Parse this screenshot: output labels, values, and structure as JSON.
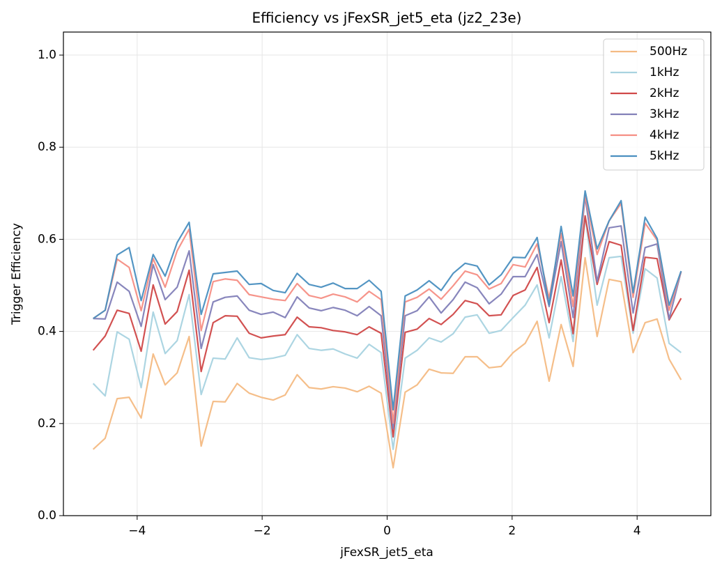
{
  "chart_data": {
    "type": "line",
    "title": "Efficiency vs jFexSR_jet5_eta (jz2_23e)",
    "xlabel": "jFexSR_jet5_eta",
    "ylabel": "Trigger Efficiency",
    "x": [
      -4.704,
      -4.512,
      -4.32,
      -4.128,
      -3.936,
      -3.744,
      -3.552,
      -3.36,
      -3.168,
      -2.976,
      -2.784,
      -2.592,
      -2.4,
      -2.208,
      -2.016,
      -1.824,
      -1.632,
      -1.44,
      -1.248,
      -1.056,
      -0.864,
      -0.672,
      -0.48,
      -0.288,
      -0.096,
      0.096,
      0.288,
      0.48,
      0.672,
      0.864,
      1.056,
      1.248,
      1.44,
      1.632,
      1.824,
      2.016,
      2.208,
      2.4,
      2.592,
      2.784,
      2.976,
      3.168,
      3.36,
      3.552,
      3.744,
      3.936,
      4.128,
      4.32,
      4.512,
      4.704
    ],
    "series": [
      {
        "name": "500Hz",
        "color": "#f4bb83",
        "values": [
          0.144,
          0.168,
          0.254,
          0.257,
          0.212,
          0.351,
          0.284,
          0.31,
          0.389,
          0.151,
          0.248,
          0.247,
          0.287,
          0.266,
          0.257,
          0.251,
          0.262,
          0.306,
          0.278,
          0.275,
          0.28,
          0.277,
          0.269,
          0.281,
          0.266,
          0.104,
          0.268,
          0.284,
          0.318,
          0.31,
          0.309,
          0.345,
          0.345,
          0.321,
          0.324,
          0.354,
          0.374,
          0.422,
          0.292,
          0.415,
          0.324,
          0.56,
          0.389,
          0.513,
          0.508,
          0.354,
          0.419,
          0.427,
          0.34,
          0.295
        ]
      },
      {
        "name": "1kHz",
        "color": "#a8d3e0",
        "values": [
          0.287,
          0.26,
          0.399,
          0.383,
          0.278,
          0.442,
          0.352,
          0.38,
          0.48,
          0.263,
          0.342,
          0.34,
          0.386,
          0.343,
          0.339,
          0.342,
          0.348,
          0.393,
          0.363,
          0.359,
          0.362,
          0.351,
          0.342,
          0.372,
          0.354,
          0.144,
          0.342,
          0.359,
          0.386,
          0.377,
          0.395,
          0.431,
          0.436,
          0.396,
          0.402,
          0.43,
          0.457,
          0.501,
          0.386,
          0.519,
          0.378,
          0.649,
          0.457,
          0.56,
          0.563,
          0.396,
          0.536,
          0.516,
          0.374,
          0.354
        ]
      },
      {
        "name": "2kHz",
        "color": "#d04848",
        "values": [
          0.359,
          0.39,
          0.446,
          0.439,
          0.357,
          0.501,
          0.416,
          0.443,
          0.533,
          0.313,
          0.419,
          0.434,
          0.433,
          0.396,
          0.386,
          0.39,
          0.393,
          0.431,
          0.41,
          0.408,
          0.402,
          0.399,
          0.393,
          0.41,
          0.396,
          0.171,
          0.398,
          0.405,
          0.428,
          0.415,
          0.437,
          0.467,
          0.46,
          0.434,
          0.436,
          0.478,
          0.49,
          0.539,
          0.419,
          0.555,
          0.395,
          0.651,
          0.502,
          0.595,
          0.587,
          0.402,
          0.561,
          0.558,
          0.425,
          0.472
        ]
      },
      {
        "name": "3kHz",
        "color": "#8280b8",
        "values": [
          0.428,
          0.427,
          0.507,
          0.487,
          0.411,
          0.545,
          0.469,
          0.496,
          0.575,
          0.363,
          0.464,
          0.474,
          0.477,
          0.446,
          0.437,
          0.442,
          0.43,
          0.475,
          0.451,
          0.445,
          0.452,
          0.446,
          0.434,
          0.454,
          0.434,
          0.189,
          0.434,
          0.445,
          0.475,
          0.44,
          0.469,
          0.507,
          0.495,
          0.46,
          0.481,
          0.519,
          0.519,
          0.567,
          0.454,
          0.595,
          0.43,
          0.693,
          0.508,
          0.625,
          0.629,
          0.44,
          0.582,
          0.59,
          0.427,
          0.53
        ]
      },
      {
        "name": "4kHz",
        "color": "#f58e84",
        "values": [
          0.428,
          0.446,
          0.557,
          0.539,
          0.445,
          0.558,
          0.496,
          0.575,
          0.622,
          0.402,
          0.508,
          0.514,
          0.511,
          0.48,
          0.475,
          0.47,
          0.467,
          0.504,
          0.478,
          0.472,
          0.481,
          0.475,
          0.464,
          0.487,
          0.469,
          0.201,
          0.464,
          0.474,
          0.492,
          0.47,
          0.499,
          0.531,
          0.523,
          0.492,
          0.504,
          0.545,
          0.54,
          0.59,
          0.472,
          0.613,
          0.454,
          0.696,
          0.567,
          0.64,
          0.678,
          0.474,
          0.635,
          0.598,
          0.446,
          0.53
        ]
      },
      {
        "name": "5kHz",
        "color": "#4a8fc0",
        "values": [
          0.428,
          0.446,
          0.566,
          0.582,
          0.467,
          0.567,
          0.52,
          0.593,
          0.637,
          0.437,
          0.525,
          0.528,
          0.531,
          0.502,
          0.504,
          0.489,
          0.484,
          0.526,
          0.502,
          0.496,
          0.505,
          0.493,
          0.493,
          0.511,
          0.487,
          0.23,
          0.477,
          0.49,
          0.51,
          0.489,
          0.526,
          0.548,
          0.542,
          0.501,
          0.523,
          0.561,
          0.56,
          0.604,
          0.458,
          0.628,
          0.477,
          0.705,
          0.579,
          0.64,
          0.684,
          0.484,
          0.648,
          0.602,
          0.457,
          0.531
        ]
      }
    ],
    "xlim": [
      -5.18,
      5.18
    ],
    "xticks": [
      {
        "value": -4,
        "label": "−4"
      },
      {
        "value": -2,
        "label": "−2"
      },
      0,
      2,
      4
    ],
    "ylim": [
      0,
      1.05
    ],
    "yticks": [
      {
        "value": 0,
        "label": "0.0"
      },
      0.2,
      0.4,
      0.6,
      0.8,
      {
        "value": 1,
        "label": "1.0"
      }
    ],
    "grid": true,
    "legend": "upper right"
  }
}
